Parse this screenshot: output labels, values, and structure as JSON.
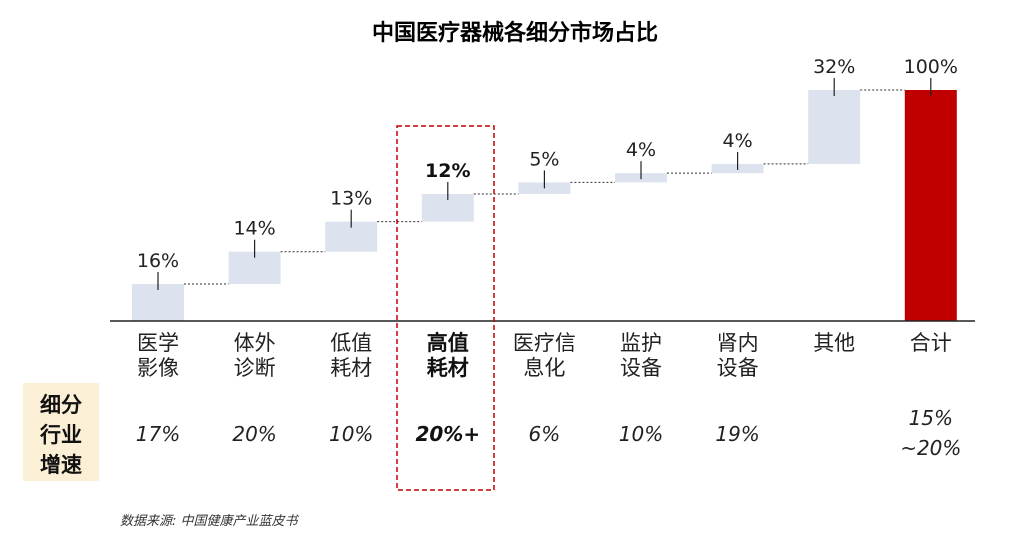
{
  "chart_data": {
    "type": "waterfall",
    "title": "中国医疗器械各细分市场占比",
    "categories": [
      [
        "医学",
        "影像"
      ],
      [
        "体外",
        "诊断"
      ],
      [
        "低值",
        "耗材"
      ],
      [
        "高值",
        "耗材"
      ],
      [
        "医疗信",
        "息化"
      ],
      [
        "监护",
        "设备"
      ],
      [
        "肾内",
        "设备"
      ],
      [
        "其他"
      ],
      [
        "合计"
      ]
    ],
    "values": [
      16,
      14,
      13,
      12,
      5,
      4,
      4,
      32,
      100
    ],
    "value_labels": [
      "16%",
      "14%",
      "13%",
      "12%",
      "5%",
      "4%",
      "4%",
      "32%",
      "100%"
    ],
    "total_index": 8,
    "highlight_index": 3,
    "growth_row_label": [
      "细分",
      "行业",
      "增速"
    ],
    "growth_rates": [
      [
        "17%"
      ],
      [
        "20%"
      ],
      [
        "10%"
      ],
      [
        "20%+"
      ],
      [
        "6%"
      ],
      [
        "10%"
      ],
      [
        "19%"
      ],
      [],
      [
        "15%",
        "~20%"
      ]
    ],
    "source": "数据来源:  中国健康产业蓝皮书",
    "colors": {
      "bar": "#dce3ee",
      "total_bar": "#c00000",
      "highlight_border": "#c00000",
      "row_label_bg": "#fbf0d6",
      "connector": "#333333"
    }
  }
}
